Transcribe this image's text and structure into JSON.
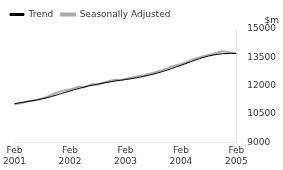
{
  "chart_data": {
    "type": "line",
    "ylabel": "$m",
    "categories": [
      "Feb\n2001",
      null,
      null,
      null,
      null,
      null,
      null,
      null,
      null,
      null,
      null,
      null,
      "Feb\n2002",
      null,
      null,
      null,
      null,
      null,
      null,
      null,
      null,
      null,
      null,
      null,
      "Feb\n2003",
      null,
      null,
      null,
      null,
      null,
      null,
      null,
      null,
      null,
      null,
      null,
      "Feb\n2004",
      null,
      null,
      null,
      null,
      null,
      null,
      null,
      null,
      null,
      null,
      null,
      "Feb\n2005"
    ],
    "series": [
      {
        "name": "Trend",
        "color": "#000000",
        "values": [
          11050,
          11090,
          11130,
          11170,
          11210,
          11255,
          11300,
          11360,
          11425,
          11500,
          11575,
          11650,
          11720,
          11790,
          11855,
          11920,
          11980,
          12035,
          12085,
          12130,
          12175,
          12215,
          12255,
          12290,
          12325,
          12360,
          12400,
          12445,
          12495,
          12550,
          12610,
          12675,
          12745,
          12825,
          12910,
          12995,
          13080,
          13165,
          13255,
          13345,
          13430,
          13505,
          13570,
          13620,
          13660,
          13690,
          13705,
          13710,
          13700
        ]
      },
      {
        "name": "Seasonally Adjusted",
        "color": "#aaaaaa",
        "values": [
          11020,
          11060,
          11110,
          11180,
          11200,
          11260,
          11330,
          11410,
          11510,
          11620,
          11700,
          11760,
          11800,
          11870,
          11960,
          11910,
          12020,
          12090,
          12055,
          12140,
          12210,
          12270,
          12310,
          12285,
          12360,
          12405,
          12455,
          12510,
          12560,
          12620,
          12680,
          12750,
          12820,
          12920,
          13010,
          13080,
          13140,
          13230,
          13330,
          13420,
          13500,
          13570,
          13630,
          13690,
          13760,
          13820,
          13790,
          13740,
          13710
        ]
      }
    ],
    "ylim": [
      9000,
      15000
    ],
    "yticks": [
      9000,
      10500,
      12000,
      13500,
      15000
    ],
    "grid": false,
    "legend": "upper left"
  }
}
